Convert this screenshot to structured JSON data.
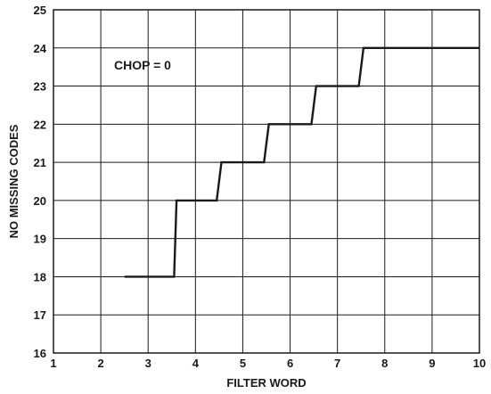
{
  "chart_data": {
    "type": "line",
    "title": "",
    "xlabel": "FILTER WORD",
    "ylabel": "NO MISSING CODES",
    "xlim": [
      1,
      10
    ],
    "ylim": [
      16,
      25
    ],
    "xticks": [
      1,
      2,
      3,
      4,
      5,
      6,
      7,
      8,
      9,
      10
    ],
    "yticks": [
      16,
      17,
      18,
      19,
      20,
      21,
      22,
      23,
      24,
      25
    ],
    "grid": true,
    "annotation": "CHOP = 0",
    "series": [
      {
        "x": [
          2.5,
          3.55,
          3.6,
          4.45,
          4.55,
          5.45,
          5.55,
          6.45,
          6.55,
          7.45,
          7.55,
          10
        ],
        "y": [
          18,
          18,
          20,
          20,
          21,
          21,
          22,
          22,
          23,
          23,
          24,
          24
        ]
      }
    ],
    "line_color": "#1a1a1a",
    "grid_color": "#1a1a1a"
  }
}
